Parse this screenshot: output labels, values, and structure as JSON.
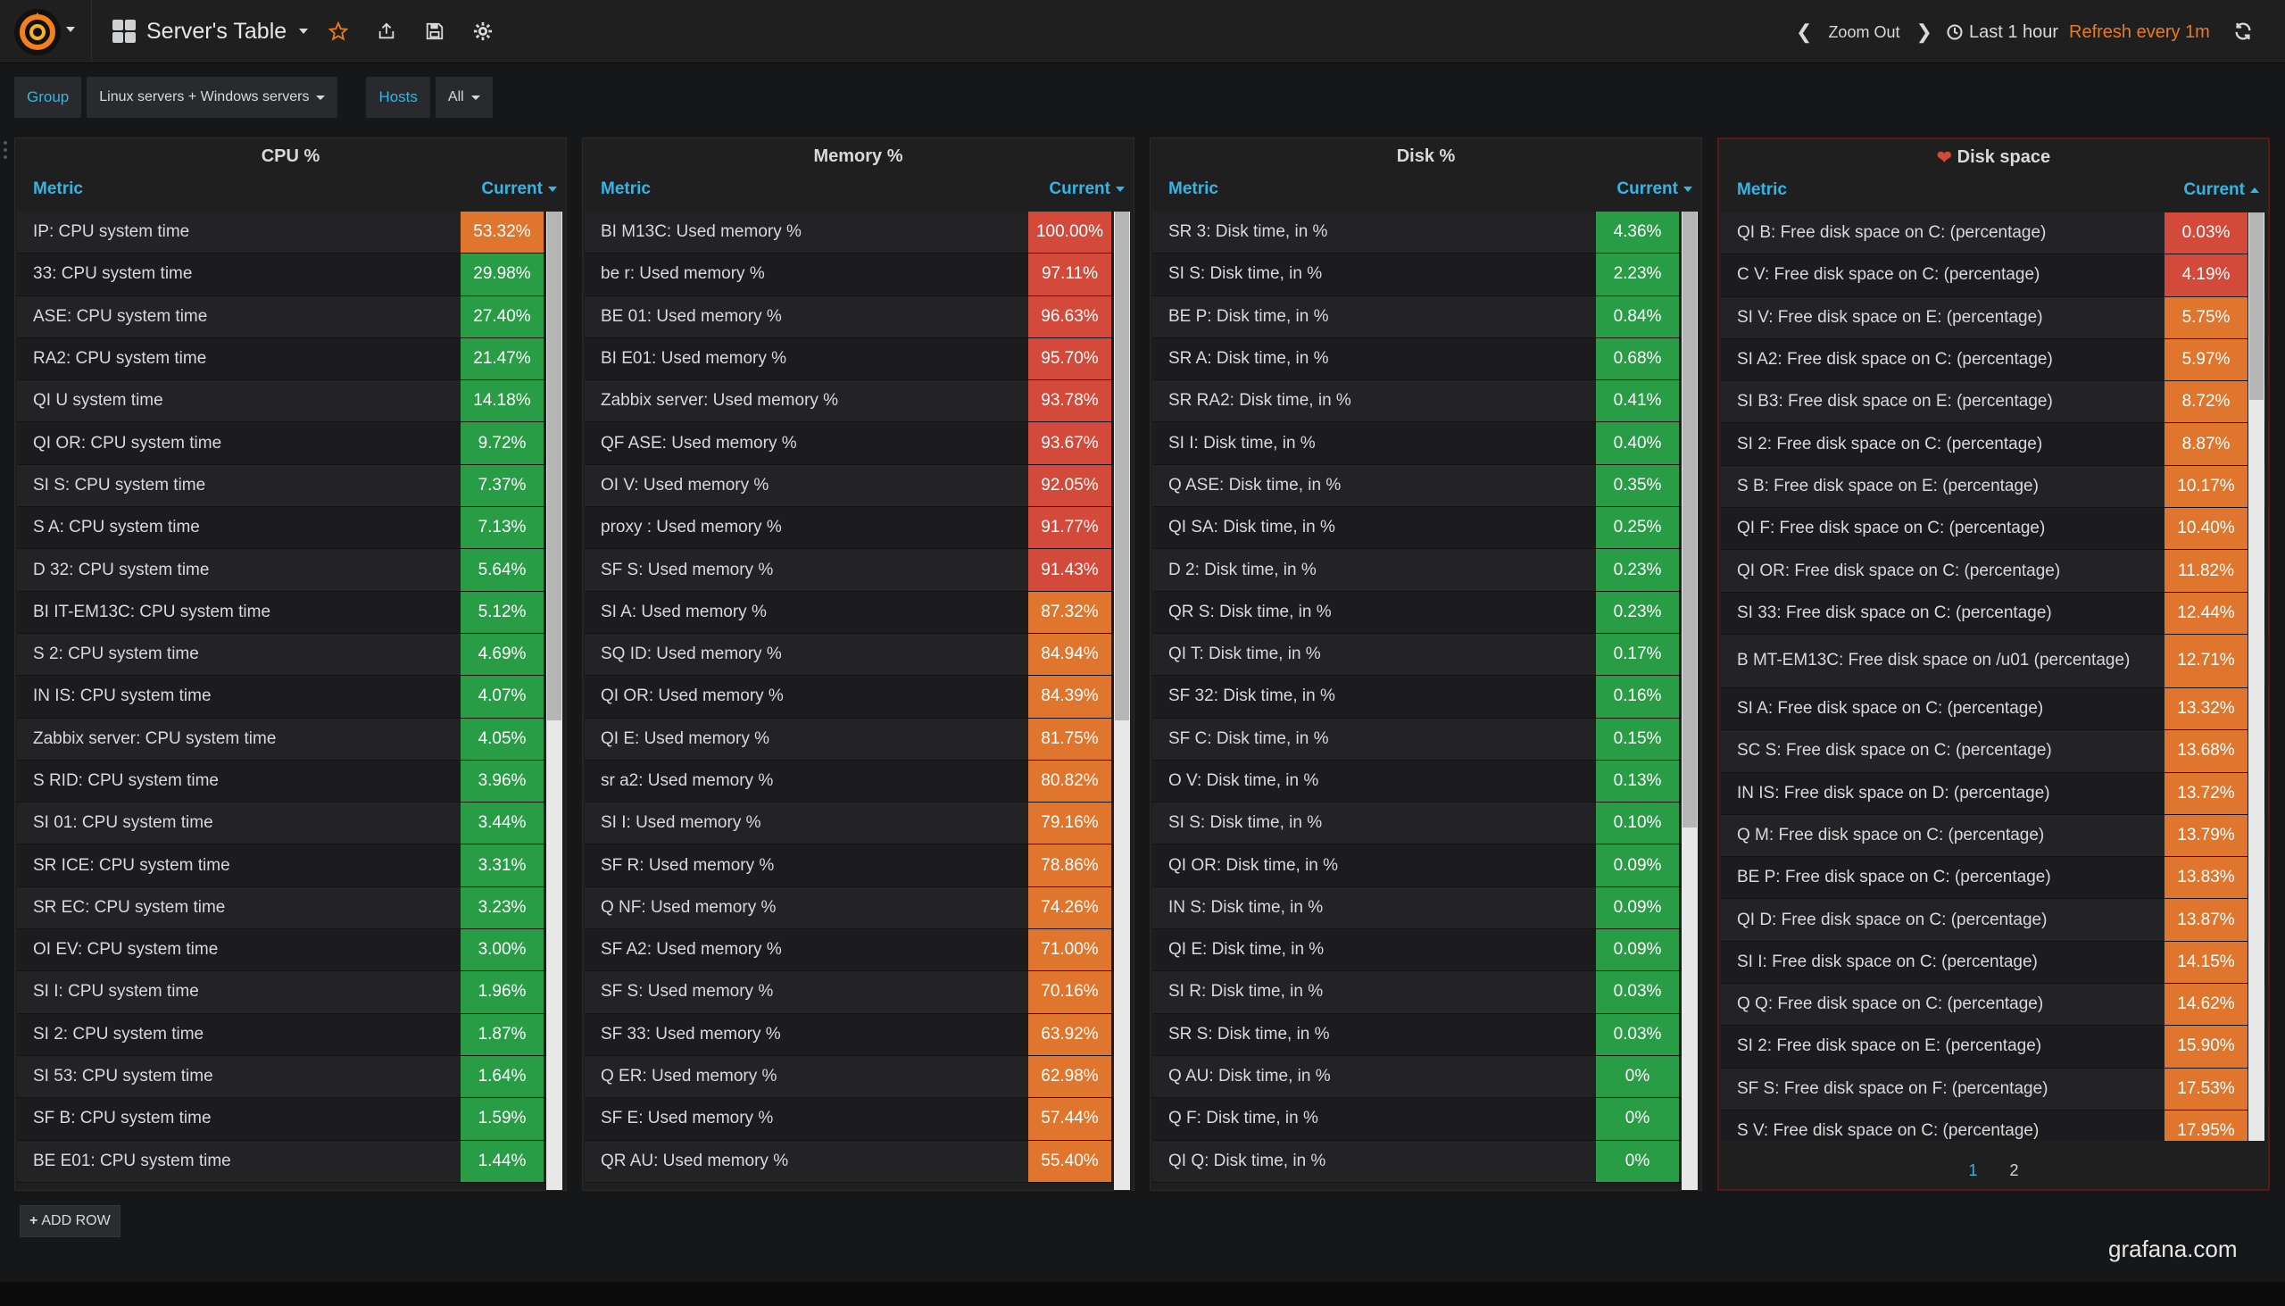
{
  "nav": {
    "dashboard_title": "Server's Table",
    "zoom_out": "Zoom Out",
    "time_range": "Last 1 hour",
    "refresh": "Refresh every 1m"
  },
  "variables": [
    {
      "label": "Group",
      "value": "Linux servers + Windows servers"
    },
    {
      "label": "Hosts",
      "value": "All"
    }
  ],
  "panels": {
    "cpu": {
      "title": "CPU %",
      "col_metric": "Metric",
      "col_current": "Current",
      "rows": [
        {
          "metric": "IP: CPU system time",
          "value": "53.32%",
          "color": "orange"
        },
        {
          "metric": "33: CPU system time",
          "value": "29.98%",
          "color": "green"
        },
        {
          "metric": "ASE: CPU system time",
          "value": "27.40%",
          "color": "green"
        },
        {
          "metric": "RA2: CPU system time",
          "value": "21.47%",
          "color": "green"
        },
        {
          "metric": "QI      U system time",
          "value": "14.18%",
          "color": "green"
        },
        {
          "metric": "QI      OR: CPU system time",
          "value": "9.72%",
          "color": "green"
        },
        {
          "metric": "SI      S: CPU system time",
          "value": "7.37%",
          "color": "green"
        },
        {
          "metric": "S       A: CPU system time",
          "value": "7.13%",
          "color": "green"
        },
        {
          "metric": "D       32: CPU system time",
          "value": "5.64%",
          "color": "green"
        },
        {
          "metric": "BI                              IT-EM13C: CPU system time",
          "value": "5.12%",
          "color": "green"
        },
        {
          "metric": "S       2: CPU system time",
          "value": "4.69%",
          "color": "green"
        },
        {
          "metric": "IN      IS: CPU system time",
          "value": "4.07%",
          "color": "green"
        },
        {
          "metric": "Zabbix server: CPU system time",
          "value": "4.05%",
          "color": "green"
        },
        {
          "metric": "S       RID: CPU system time",
          "value": "3.96%",
          "color": "green"
        },
        {
          "metric": "SI      01: CPU system time",
          "value": "3.44%",
          "color": "green"
        },
        {
          "metric": "SR      ICE: CPU system time",
          "value": "3.31%",
          "color": "green"
        },
        {
          "metric": "SR      EC: CPU system time",
          "value": "3.23%",
          "color": "green"
        },
        {
          "metric": "OI      EV: CPU system time",
          "value": "3.00%",
          "color": "green"
        },
        {
          "metric": "SI      I: CPU system time",
          "value": "1.96%",
          "color": "green"
        },
        {
          "metric": "SI      2: CPU system time",
          "value": "1.87%",
          "color": "green"
        },
        {
          "metric": "SI      53: CPU system time",
          "value": "1.64%",
          "color": "green"
        },
        {
          "metric": "SF      B: CPU system time",
          "value": "1.59%",
          "color": "green"
        },
        {
          "metric": "BE                 E01: CPU system time",
          "value": "1.44%",
          "color": "green"
        }
      ]
    },
    "memory": {
      "title": "Memory %",
      "col_metric": "Metric",
      "col_current": "Current",
      "rows": [
        {
          "metric": "BI                  M13C: Used memory %",
          "value": "100.00%",
          "color": "red"
        },
        {
          "metric": "be              r: Used memory %",
          "value": "97.11%",
          "color": "red"
        },
        {
          "metric": "BE              01: Used memory %",
          "value": "96.63%",
          "color": "red"
        },
        {
          "metric": "BI              E01: Used memory %",
          "value": "95.70%",
          "color": "red"
        },
        {
          "metric": "Zabbix server: Used memory %",
          "value": "93.78%",
          "color": "red"
        },
        {
          "metric": "QF              ASE: Used memory %",
          "value": "93.67%",
          "color": "red"
        },
        {
          "metric": "OI      V: Used memory %",
          "value": "92.05%",
          "color": "red"
        },
        {
          "metric": "proxy           : Used memory %",
          "value": "91.77%",
          "color": "red"
        },
        {
          "metric": "SF      S: Used memory %",
          "value": "91.43%",
          "color": "red"
        },
        {
          "metric": "SI      A: Used memory %",
          "value": "87.32%",
          "color": "orange"
        },
        {
          "metric": "SQ          ID: Used memory %",
          "value": "84.94%",
          "color": "orange"
        },
        {
          "metric": "QI      OR: Used memory %",
          "value": "84.39%",
          "color": "orange"
        },
        {
          "metric": "QI      E: Used memory %",
          "value": "81.75%",
          "color": "orange"
        },
        {
          "metric": "sr          a2: Used memory %",
          "value": "80.82%",
          "color": "orange"
        },
        {
          "metric": "SI      I: Used memory %",
          "value": "79.16%",
          "color": "orange"
        },
        {
          "metric": "SF          R: Used memory %",
          "value": "78.86%",
          "color": "orange"
        },
        {
          "metric": "Q       NF: Used memory %",
          "value": "74.26%",
          "color": "orange"
        },
        {
          "metric": "SF          A2: Used memory %",
          "value": "71.00%",
          "color": "orange"
        },
        {
          "metric": "SF      S: Used memory %",
          "value": "70.16%",
          "color": "orange"
        },
        {
          "metric": "SF      33: Used memory %",
          "value": "63.92%",
          "color": "orange"
        },
        {
          "metric": "Q           ER: Used memory %",
          "value": "62.98%",
          "color": "orange"
        },
        {
          "metric": "SF          E: Used memory %",
          "value": "57.44%",
          "color": "orange"
        },
        {
          "metric": "QR          AU: Used memory %",
          "value": "55.40%",
          "color": "orange"
        }
      ]
    },
    "disk": {
      "title": "Disk %",
      "col_metric": "Metric",
      "col_current": "Current",
      "rows": [
        {
          "metric": "SR          3: Disk time, in %",
          "value": "4.36%",
          "color": "green"
        },
        {
          "metric": "SI          S: Disk time, in %",
          "value": "2.23%",
          "color": "green"
        },
        {
          "metric": "BE              P: Disk time, in %",
          "value": "0.84%",
          "color": "green"
        },
        {
          "metric": "SR      A: Disk time, in %",
          "value": "0.68%",
          "color": "green"
        },
        {
          "metric": "SR          RA2: Disk time, in %",
          "value": "0.41%",
          "color": "green"
        },
        {
          "metric": "SI      I: Disk time, in %",
          "value": "0.40%",
          "color": "green"
        },
        {
          "metric": "Q               ASE: Disk time, in %",
          "value": "0.35%",
          "color": "green"
        },
        {
          "metric": "QI          SA: Disk time, in %",
          "value": "0.25%",
          "color": "green"
        },
        {
          "metric": "D           2: Disk time, in %",
          "value": "0.23%",
          "color": "green"
        },
        {
          "metric": "QR              S: Disk time, in %",
          "value": "0.23%",
          "color": "green"
        },
        {
          "metric": "QI      T: Disk time, in %",
          "value": "0.17%",
          "color": "green"
        },
        {
          "metric": "SF          32: Disk time, in %",
          "value": "0.16%",
          "color": "green"
        },
        {
          "metric": "SF          C: Disk time, in %",
          "value": "0.15%",
          "color": "green"
        },
        {
          "metric": "O       V: Disk time, in %",
          "value": "0.13%",
          "color": "green"
        },
        {
          "metric": "SI      S: Disk time, in %",
          "value": "0.10%",
          "color": "green"
        },
        {
          "metric": "QI          OR: Disk time, in %",
          "value": "0.09%",
          "color": "green"
        },
        {
          "metric": "IN              S: Disk time, in %",
          "value": "0.09%",
          "color": "green"
        },
        {
          "metric": "QI      E: Disk time, in %",
          "value": "0.09%",
          "color": "green"
        },
        {
          "metric": "SI              R: Disk time, in %",
          "value": "0.03%",
          "color": "green"
        },
        {
          "metric": "SR      S: Disk time, in %",
          "value": "0.03%",
          "color": "green"
        },
        {
          "metric": "Q               AU: Disk time, in %",
          "value": "0%",
          "color": "green"
        },
        {
          "metric": "Q               F: Disk time, in %",
          "value": "0%",
          "color": "green"
        },
        {
          "metric": "QI              Q: Disk time, in %",
          "value": "0%",
          "color": "green"
        }
      ]
    },
    "diskspace": {
      "title": "Disk space",
      "col_metric": "Metric",
      "col_current": "Current",
      "rows": [
        {
          "metric": "QI          B: Free disk space on C: (percentage)",
          "value": "0.03%",
          "color": "red"
        },
        {
          "metric": "C       V: Free disk space on C: (percentage)",
          "value": "4.19%",
          "color": "red"
        },
        {
          "metric": "SI      V: Free disk space on E: (percentage)",
          "value": "5.75%",
          "color": "orange"
        },
        {
          "metric": "SI          A2: Free disk space on C: (percentage)",
          "value": "5.97%",
          "color": "orange"
        },
        {
          "metric": "SI      B3: Free disk space on E: (percentage)",
          "value": "8.72%",
          "color": "orange"
        },
        {
          "metric": "SI      2: Free disk space on C: (percentage)",
          "value": "8.87%",
          "color": "orange"
        },
        {
          "metric": "S       B: Free disk space on E: (percentage)",
          "value": "10.17%",
          "color": "orange"
        },
        {
          "metric": "QI      F: Free disk space on C: (percentage)",
          "value": "10.40%",
          "color": "orange"
        },
        {
          "metric": "QI      OR: Free disk space on C: (percentage)",
          "value": "11.82%",
          "color": "orange"
        },
        {
          "metric": "SI      33: Free disk space on C: (percentage)",
          "value": "12.44%",
          "color": "orange"
        },
        {
          "metric": "B               MT-EM13C: Free disk space on /u01 (percentage)",
          "value": "12.71%",
          "color": "orange",
          "tall": true
        },
        {
          "metric": "SI      A: Free disk space on C: (percentage)",
          "value": "13.32%",
          "color": "orange"
        },
        {
          "metric": "SC      S: Free disk space on C: (percentage)",
          "value": "13.68%",
          "color": "orange"
        },
        {
          "metric": "IN          IS: Free disk space on D: (percentage)",
          "value": "13.72%",
          "color": "orange"
        },
        {
          "metric": "Q       M: Free disk space on C: (percentage)",
          "value": "13.79%",
          "color": "orange"
        },
        {
          "metric": "BE          P: Free disk space on C: (percentage)",
          "value": "13.83%",
          "color": "orange"
        },
        {
          "metric": "QI          D: Free disk space on C: (percentage)",
          "value": "13.87%",
          "color": "orange"
        },
        {
          "metric": "SI      I: Free disk space on C: (percentage)",
          "value": "14.15%",
          "color": "orange"
        },
        {
          "metric": "Q           Q: Free disk space on C: (percentage)",
          "value": "14.62%",
          "color": "orange"
        },
        {
          "metric": "SI      2: Free disk space on E: (percentage)",
          "value": "15.90%",
          "color": "orange"
        },
        {
          "metric": "SF      S: Free disk space on F: (percentage)",
          "value": "17.53%",
          "color": "orange"
        },
        {
          "metric": "S       V: Free disk space on C: (percentage)",
          "value": "17.95%",
          "color": "orange"
        }
      ],
      "pages": [
        "1",
        "2"
      ]
    }
  },
  "add_row": "ADD ROW",
  "watermark": "grafana.com",
  "colors": {
    "green": "#299c46",
    "orange": "#e0752d",
    "red": "#d44a3a",
    "accent": "#33b5e5",
    "refresh": "#eb7b18"
  }
}
